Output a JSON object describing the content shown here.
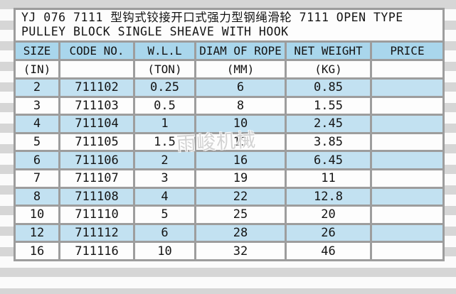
{
  "title": {
    "line1": "YJ 076 7111 型钩式铰接开口式强力型钢绳滑轮 7111 OPEN TYPE",
    "line2": "PULLEY BLOCK SINGLE SHEAVE WITH HOOK"
  },
  "table": {
    "columns": [
      {
        "label": "SIZE",
        "unit": "(IN)"
      },
      {
        "label": "CODE NO.",
        "unit": ""
      },
      {
        "label": "W.L.L",
        "unit": "(TON)"
      },
      {
        "label": "DIAM OF ROPE",
        "unit": "(MM)"
      },
      {
        "label": "NET WEIGHT",
        "unit": "(KG)"
      },
      {
        "label": "PRICE",
        "unit": ""
      }
    ],
    "rows": [
      [
        "2",
        "711102",
        "0.25",
        "6",
        "0.85",
        ""
      ],
      [
        "3",
        "711103",
        "0.5",
        "8",
        "1.55",
        ""
      ],
      [
        "4",
        "711104",
        "1",
        "10",
        "2.45",
        ""
      ],
      [
        "5",
        "711105",
        "1.5",
        "13",
        "3.85",
        ""
      ],
      [
        "6",
        "711106",
        "2",
        "16",
        "6.45",
        ""
      ],
      [
        "7",
        "711107",
        "3",
        "19",
        "11",
        ""
      ],
      [
        "8",
        "711108",
        "4",
        "22",
        "12.8",
        ""
      ],
      [
        "10",
        "711110",
        "5",
        "25",
        "20",
        ""
      ],
      [
        "12",
        "711112",
        "6",
        "28",
        "26",
        ""
      ],
      [
        "16",
        "711116",
        "10",
        "32",
        "46",
        ""
      ]
    ]
  },
  "watermark": {
    "text": "雨峻机械"
  },
  "colors": {
    "header_bg": "#a9d6ec",
    "row_alt_bg": "#c2e1f1",
    "grid_line": "#9d9d9d",
    "outer_border": "#7d7d7d",
    "stripe_dark": "#d6d6d6",
    "stripe_light": "#fbfbfb",
    "text": "#141414"
  }
}
